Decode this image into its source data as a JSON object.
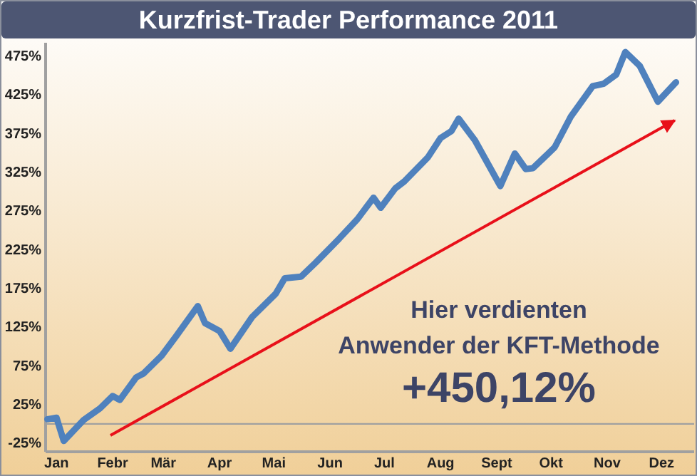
{
  "chart_data": {
    "type": "line",
    "title": "Kurzfrist-Trader Performance 2011",
    "annotations": [
      "Hier verdienten",
      "Anwender der KFT-Methode",
      "+450,12%"
    ],
    "series": [
      {
        "color": "#4f81bd",
        "x": [
          "2011-01-10",
          "2011-01-15",
          "2011-01-19",
          "2011-01-30",
          "2011-02-08",
          "2011-02-15",
          "2011-02-19",
          "2011-02-28",
          "2011-03-04",
          "2011-03-14",
          "2011-03-22",
          "2011-04-03",
          "2011-04-07",
          "2011-04-15",
          "2011-04-21",
          "2011-05-03",
          "2011-05-16",
          "2011-05-21",
          "2011-05-30",
          "2011-06-07",
          "2011-06-20",
          "2011-06-30",
          "2011-07-09",
          "2011-07-13",
          "2011-07-21",
          "2011-07-26",
          "2011-08-08",
          "2011-08-15",
          "2011-08-21",
          "2011-08-25",
          "2011-09-03",
          "2011-09-17",
          "2011-09-25",
          "2011-10-01",
          "2011-10-05",
          "2011-10-17",
          "2011-10-26",
          "2011-11-07",
          "2011-11-13",
          "2011-11-20",
          "2011-11-25",
          "2011-12-03",
          "2011-12-13",
          "2011-12-23"
        ],
        "values": [
          6,
          8,
          -22,
          5,
          20,
          36,
          31,
          60,
          65,
          88,
          113,
          152,
          130,
          120,
          97,
          138,
          168,
          188,
          190,
          208,
          239,
          264,
          292,
          279,
          304,
          313,
          344,
          369,
          378,
          394,
          366,
          307,
          349,
          329,
          330,
          357,
          397,
          436,
          439,
          451,
          480,
          462,
          416,
          441
        ]
      }
    ],
    "xlim": [
      "2011-01-09",
      "2012-01-02"
    ],
    "xticks": [
      {
        "value": "2011-01-15",
        "label": "Jan"
      },
      {
        "value": "2011-02-15",
        "label": "Febr"
      },
      {
        "value": "2011-03-15",
        "label": "Mär"
      },
      {
        "value": "2011-04-15",
        "label": "Apr"
      },
      {
        "value": "2011-05-15",
        "label": "Mai"
      },
      {
        "value": "2011-06-15",
        "label": "Jun"
      },
      {
        "value": "2011-07-15",
        "label": "Jul"
      },
      {
        "value": "2011-08-15",
        "label": "Aug"
      },
      {
        "value": "2011-09-15",
        "label": "Sept"
      },
      {
        "value": "2011-10-15",
        "label": "Okt"
      },
      {
        "value": "2011-11-15",
        "label": "Nov"
      },
      {
        "value": "2011-12-15",
        "label": "Dez"
      }
    ],
    "ylim": [
      -36,
      492
    ],
    "yticks": [
      {
        "value": -25,
        "label": "-25%"
      },
      {
        "value": 25,
        "label": "25%"
      },
      {
        "value": 75,
        "label": "75%"
      },
      {
        "value": 125,
        "label": "125%"
      },
      {
        "value": 175,
        "label": "175%"
      },
      {
        "value": 225,
        "label": "225%"
      },
      {
        "value": 275,
        "label": "275%"
      },
      {
        "value": 325,
        "label": "325%"
      },
      {
        "value": 375,
        "label": "375%"
      },
      {
        "value": 425,
        "label": "425%"
      },
      {
        "value": 475,
        "label": "475%"
      }
    ],
    "ref_lines": [
      {
        "axis": "y",
        "value": 0,
        "color": "#a0a0a0"
      }
    ],
    "marker": "none",
    "line_style": "solid"
  }
}
